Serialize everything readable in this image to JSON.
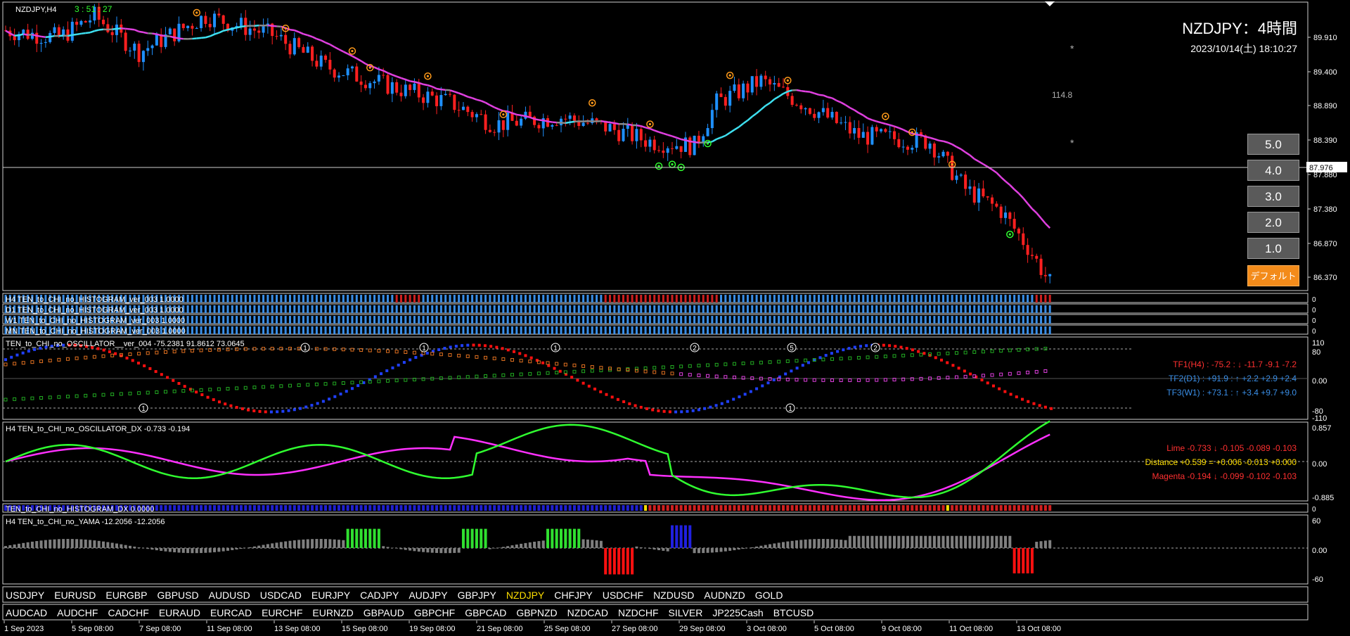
{
  "window": {
    "symbol_period": "NZDJPY,H4",
    "countdown": "3 : 51 : 27",
    "big_title": "NZDJPY：4時間",
    "datetime": "2023/10/14(土) 18:10:27",
    "side_value": "114.8",
    "star": "*"
  },
  "price_axis": {
    "labels": [
      "89.910",
      "89.400",
      "88.890",
      "88.390",
      "87.880",
      "87.380",
      "86.870",
      "86.370"
    ],
    "current_price": "87.976"
  },
  "buttons": [
    {
      "label": "5.0"
    },
    {
      "label": "4.0"
    },
    {
      "label": "3.0"
    },
    {
      "label": "2.0"
    },
    {
      "label": "1.0"
    },
    {
      "label": "デフォルト"
    }
  ],
  "histograms": [
    {
      "label": "H4 TEN_to_CHI_no_HISTOGRAM_ver_003 1.0000"
    },
    {
      "label": "D1 TEN_to_CHI_no_HISTOGRAM_ver_003 1.0000"
    },
    {
      "label": "W1 TEN_to_CHI_no_HISTOGRAM_ver_003 1.0000"
    },
    {
      "label": "MN TEN_to_CHI_no_HISTOGRAM_ver_003 1.0000"
    }
  ],
  "hist_axis": [
    "0",
    "0",
    "0",
    "0"
  ],
  "oscillator": {
    "title": "TEN_to_CHI_no_OSCILLATOR__ver_004 -75.2381 91.8612 73.0645",
    "axis": [
      "110",
      "80",
      "0.00",
      "-80",
      "-110"
    ],
    "tf1": "TF1(H4) : -75.2 : ↓ -11.7 -9.1 -7.2",
    "tf2": "TF2(D1) : +91.9 : ↑ +2.2 +2.9 +2.4",
    "tf3": "TF3(W1) : +73.1 : ↑ +3.4 +9.7 +9.0",
    "markers": [
      "1",
      "1",
      "1",
      "1",
      "2",
      "5",
      "1",
      "2"
    ]
  },
  "dx": {
    "title": "H4 TEN_to_CHI_no_OSCILLATOR_DX -0.733 -0.194",
    "axis": [
      "0.857",
      "0.00",
      "-0.885"
    ],
    "lime": "Lime -0.733 ↓ -0.105 -0.089 -0.103",
    "distance": "Distance +0.539 = +0.006 -0.013 +0.000",
    "magenta": "Magenta -0.194 ↓ -0.099 -0.102 -0.103"
  },
  "hist_dx": {
    "title": "TEN_to_CHI_no_HISTOGRAM_DX 0.0000",
    "axis": "0"
  },
  "yama": {
    "title": "H4 TEN_to_CHI_no_YAMA -12.2056 -12.2056",
    "axis": [
      "60",
      "0.00",
      "-60"
    ]
  },
  "symbols_row1": [
    "USDJPY",
    "EURUSD",
    "EURGBP",
    "GBPUSD",
    "AUDUSD",
    "USDCAD",
    "EURJPY",
    "CADJPY",
    "AUDJPY",
    "GBPJPY",
    "NZDJPY",
    "CHFJPY",
    "USDCHF",
    "NZDUSD",
    "AUDNZD",
    "GOLD"
  ],
  "symbols_row2": [
    "AUDCAD",
    "AUDCHF",
    "CADCHF",
    "EURAUD",
    "EURCAD",
    "EURCHF",
    "EURNZD",
    "GBPAUD",
    "GBPCHF",
    "GBPCAD",
    "GBPNZD",
    "NZDCAD",
    "NZDCHF",
    "SILVER",
    "JP225Cash",
    "BTCUSD"
  ],
  "active_symbol": "NZDJPY",
  "time_axis": [
    "1 Sep 2023",
    "5 Sep 08:00",
    "7 Sep 08:00",
    "11 Sep 08:00",
    "13 Sep 08:00",
    "15 Sep 08:00",
    "19 Sep 08:00",
    "21 Sep 08:00",
    "25 Sep 08:00",
    "27 Sep 08:00",
    "29 Sep 08:00",
    "3 Oct 08:00",
    "5 Oct 08:00",
    "9 Oct 08:00",
    "11 Oct 08:00",
    "13 Oct 08:00"
  ],
  "colors": {
    "bull": "#1e90ff",
    "bear": "#ff2020",
    "ma_up": "#3ee0f0",
    "ma_down": "#e040e0",
    "lime": "#30ff30",
    "magenta": "#ff30ff"
  }
}
